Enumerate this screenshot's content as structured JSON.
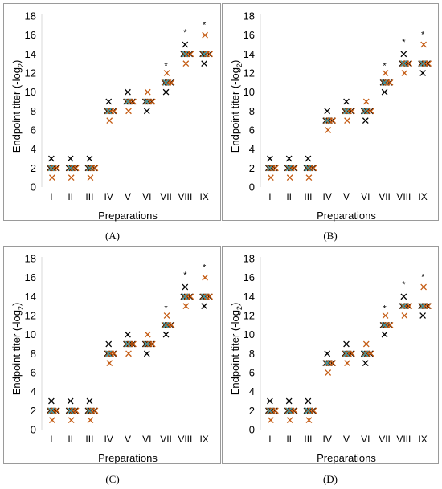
{
  "chart_data": [
    {
      "type": "scatter",
      "xlabel": "Preparations",
      "ylabel": "Endpoint titer (-log",
      "ylabel_sub": "2",
      "ylabel_close": ")",
      "ylim": [
        0,
        18
      ],
      "yticks": [
        0,
        2,
        4,
        6,
        8,
        10,
        12,
        14,
        16,
        18
      ],
      "categories": [
        "I",
        "II",
        "III",
        "IV",
        "V",
        "VI",
        "VII",
        "VIII",
        "IX"
      ],
      "grid": false,
      "series": [
        {
          "color": "#000000",
          "values": [
            [
              3,
              2,
              2,
              2
            ],
            [
              3,
              2,
              2,
              2
            ],
            [
              3,
              2,
              2,
              2
            ],
            [
              9,
              8,
              8,
              8
            ],
            [
              10,
              9,
              9,
              9
            ],
            [
              8,
              9,
              9,
              9
            ],
            [
              10,
              11,
              11,
              11
            ],
            [
              15,
              14,
              14,
              14
            ],
            [
              13,
              14,
              14,
              14
            ]
          ]
        },
        {
          "color": "#c45a11",
          "values": [
            [
              1,
              2,
              2,
              2
            ],
            [
              1,
              2,
              2,
              2
            ],
            [
              1,
              2,
              2,
              2
            ],
            [
              7,
              8,
              8,
              8
            ],
            [
              8,
              9,
              9,
              9
            ],
            [
              10,
              9,
              9,
              9
            ],
            [
              12,
              11,
              11,
              11
            ],
            [
              13,
              14,
              14,
              14
            ],
            [
              16,
              14,
              14,
              14
            ]
          ]
        },
        {
          "color": "#3e9aa6",
          "values": [
            [
              2
            ],
            [
              2
            ],
            [
              2
            ],
            [
              8
            ],
            [
              9
            ],
            [
              9
            ],
            [
              11
            ],
            [
              14
            ],
            [
              14
            ]
          ]
        }
      ],
      "annotations": [
        {
          "category": "VII",
          "y": 12.9,
          "text": "*"
        },
        {
          "category": "VIII",
          "y": 16.4,
          "text": "*"
        },
        {
          "category": "IX",
          "y": 17.2,
          "text": "*"
        }
      ]
    },
    {
      "type": "scatter",
      "xlabel": "Preparations",
      "ylabel": "Endpoint titer (-log",
      "ylabel_sub": "2",
      "ylabel_close": ")",
      "ylim": [
        0,
        18
      ],
      "yticks": [
        0,
        2,
        4,
        6,
        8,
        10,
        12,
        14,
        16,
        18
      ],
      "categories": [
        "I",
        "II",
        "III",
        "IV",
        "V",
        "VI",
        "VII",
        "VIII",
        "IX"
      ],
      "grid": false,
      "series": [
        {
          "color": "#000000",
          "values": [
            [
              3,
              2,
              2,
              2
            ],
            [
              3,
              2,
              2,
              2
            ],
            [
              3,
              2,
              2,
              2
            ],
            [
              8,
              7,
              7,
              7
            ],
            [
              9,
              8,
              8,
              8
            ],
            [
              7,
              8,
              8,
              8
            ],
            [
              10,
              11,
              11,
              11
            ],
            [
              14,
              13,
              13,
              13
            ],
            [
              12,
              13,
              13,
              13
            ]
          ]
        },
        {
          "color": "#c45a11",
          "values": [
            [
              1,
              2,
              2,
              2
            ],
            [
              1,
              2,
              2,
              2
            ],
            [
              1,
              2,
              2,
              2
            ],
            [
              6,
              7,
              7,
              7
            ],
            [
              7,
              8,
              8,
              8
            ],
            [
              9,
              8,
              8,
              8
            ],
            [
              12,
              11,
              11,
              11
            ],
            [
              12,
              13,
              13,
              13
            ],
            [
              15,
              13,
              13,
              13
            ]
          ]
        },
        {
          "color": "#3e9aa6",
          "values": [
            [
              2
            ],
            [
              2
            ],
            [
              2
            ],
            [
              7
            ],
            [
              8
            ],
            [
              8
            ],
            [
              11
            ],
            [
              13
            ],
            [
              13
            ]
          ]
        }
      ],
      "annotations": [
        {
          "category": "VII",
          "y": 12.9,
          "text": "*"
        },
        {
          "category": "VIII",
          "y": 15.4,
          "text": "*"
        },
        {
          "category": "IX",
          "y": 16.2,
          "text": "*"
        }
      ]
    },
    {
      "type": "scatter",
      "xlabel": "Preparations",
      "ylabel": "Endpoint titer (-log",
      "ylabel_sub": "2",
      "ylabel_close": ")",
      "ylim": [
        0,
        18
      ],
      "yticks": [
        0,
        2,
        4,
        6,
        8,
        10,
        12,
        14,
        16,
        18
      ],
      "categories": [
        "I",
        "II",
        "III",
        "IV",
        "V",
        "VI",
        "VII",
        "VIII",
        "IX"
      ],
      "grid": false,
      "series": [
        {
          "color": "#000000",
          "values": [
            [
              3,
              2,
              2,
              2
            ],
            [
              3,
              2,
              2,
              2
            ],
            [
              3,
              2,
              2,
              2
            ],
            [
              9,
              8,
              8,
              8
            ],
            [
              10,
              9,
              9,
              9
            ],
            [
              8,
              9,
              9,
              9
            ],
            [
              10,
              11,
              11,
              11
            ],
            [
              15,
              14,
              14,
              14
            ],
            [
              13,
              14,
              14,
              14
            ]
          ]
        },
        {
          "color": "#c45a11",
          "values": [
            [
              1,
              2,
              2,
              2
            ],
            [
              1,
              2,
              2,
              2
            ],
            [
              1,
              2,
              2,
              2
            ],
            [
              7,
              8,
              8,
              8
            ],
            [
              8,
              9,
              9,
              9
            ],
            [
              10,
              9,
              9,
              9
            ],
            [
              12,
              11,
              11,
              11
            ],
            [
              13,
              14,
              14,
              14
            ],
            [
              16,
              14,
              14,
              14
            ]
          ]
        },
        {
          "color": "#3e9aa6",
          "values": [
            [
              2
            ],
            [
              2
            ],
            [
              2
            ],
            [
              8
            ],
            [
              9
            ],
            [
              9
            ],
            [
              11
            ],
            [
              14
            ],
            [
              14
            ]
          ]
        }
      ],
      "annotations": [
        {
          "category": "VII",
          "y": 12.9,
          "text": "*"
        },
        {
          "category": "VIII",
          "y": 16.4,
          "text": "*"
        },
        {
          "category": "IX",
          "y": 17.2,
          "text": "*"
        }
      ]
    },
    {
      "type": "scatter",
      "xlabel": "Preparations",
      "ylabel": "Endpoint titer (-log",
      "ylabel_sub": "2",
      "ylabel_close": ")",
      "ylim": [
        0,
        18
      ],
      "yticks": [
        0,
        2,
        4,
        6,
        8,
        10,
        12,
        14,
        16,
        18
      ],
      "categories": [
        "I",
        "II",
        "III",
        "IV",
        "V",
        "VI",
        "VII",
        "VIII",
        "IX"
      ],
      "grid": false,
      "series": [
        {
          "color": "#000000",
          "values": [
            [
              3,
              2,
              2,
              2
            ],
            [
              3,
              2,
              2,
              2
            ],
            [
              3,
              2,
              2,
              2
            ],
            [
              8,
              7,
              7,
              7
            ],
            [
              9,
              8,
              8,
              8
            ],
            [
              7,
              8,
              8,
              8
            ],
            [
              10,
              11,
              11,
              11
            ],
            [
              14,
              13,
              13,
              13
            ],
            [
              12,
              13,
              13,
              13
            ]
          ]
        },
        {
          "color": "#c45a11",
          "values": [
            [
              1,
              2,
              2,
              2
            ],
            [
              1,
              2,
              2,
              2
            ],
            [
              1,
              2,
              2,
              2
            ],
            [
              6,
              7,
              7,
              7
            ],
            [
              7,
              8,
              8,
              8
            ],
            [
              9,
              8,
              8,
              8
            ],
            [
              12,
              11,
              11,
              11
            ],
            [
              12,
              13,
              13,
              13
            ],
            [
              15,
              13,
              13,
              13
            ]
          ]
        },
        {
          "color": "#3e9aa6",
          "values": [
            [
              2
            ],
            [
              2
            ],
            [
              2
            ],
            [
              7
            ],
            [
              8
            ],
            [
              8
            ],
            [
              11
            ],
            [
              13
            ],
            [
              13
            ]
          ]
        }
      ],
      "annotations": [
        {
          "category": "VII",
          "y": 12.9,
          "text": "*"
        },
        {
          "category": "VIII",
          "y": 15.4,
          "text": "*"
        },
        {
          "category": "IX",
          "y": 16.2,
          "text": "*"
        }
      ]
    }
  ],
  "captions": [
    "(A)",
    "(B)",
    "(C)",
    "(D)"
  ]
}
